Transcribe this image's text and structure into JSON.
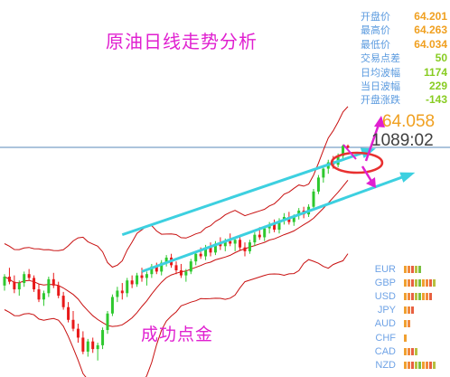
{
  "title": "原油日线走势分析",
  "bottom_label": "成功点金",
  "stats": [
    {
      "name": "开盘价",
      "value": "64.201",
      "color": "#f0a020"
    },
    {
      "name": "最高价",
      "value": "64.263",
      "color": "#f0a020"
    },
    {
      "name": "最低价",
      "value": "64.034",
      "color": "#f0a020"
    },
    {
      "name": "交易点差",
      "value": "50",
      "color": "#88cc22"
    },
    {
      "name": "日均波幅",
      "value": "1174",
      "color": "#88cc22"
    },
    {
      "name": "当日波幅",
      "value": "229",
      "color": "#88cc22"
    },
    {
      "name": "开盘涨跌",
      "value": "-143",
      "color": "#88cc22"
    }
  ],
  "price_label": "64.058",
  "time_label": "1089:02",
  "currencies": [
    {
      "name": "EUR",
      "strength": 5
    },
    {
      "name": "GBP",
      "strength": 9
    },
    {
      "name": "USD",
      "strength": 8
    },
    {
      "name": "JPY",
      "strength": 3
    },
    {
      "name": "AUD",
      "strength": 2
    },
    {
      "name": "CHF",
      "strength": 1
    },
    {
      "name": "CAD",
      "strength": 4
    },
    {
      "name": "NZD",
      "strength": 9
    }
  ],
  "colors": {
    "up_candle": "#2ec82e",
    "down_candle": "#e81818",
    "bollinger": "#c81010",
    "channel": "#3dd0e0",
    "annotation": "#e020d0",
    "ellipse": "#e83030",
    "last_price_line": "#2060a0"
  },
  "chart_data": {
    "type": "candlestick",
    "title": "原油日线走势分析",
    "last_price": 64.058,
    "ohlc_open_high_low": [
      64.201,
      64.263,
      64.034
    ],
    "candles": [
      [
        53.2,
        54.1,
        52.8,
        53.9
      ],
      [
        53.9,
        54.6,
        53.3,
        53.5
      ],
      [
        53.5,
        54.0,
        52.6,
        52.9
      ],
      [
        52.9,
        53.6,
        52.4,
        53.4
      ],
      [
        53.4,
        54.3,
        53.1,
        54.1
      ],
      [
        54.1,
        54.5,
        53.6,
        53.8
      ],
      [
        53.8,
        54.0,
        52.7,
        52.9
      ],
      [
        52.9,
        53.3,
        51.9,
        52.1
      ],
      [
        52.1,
        52.8,
        51.6,
        52.6
      ],
      [
        52.6,
        53.9,
        52.3,
        53.7
      ],
      [
        53.7,
        54.2,
        53.0,
        53.2
      ],
      [
        53.2,
        53.5,
        52.2,
        52.4
      ],
      [
        52.4,
        52.7,
        51.3,
        51.5
      ],
      [
        51.5,
        51.9,
        50.3,
        50.5
      ],
      [
        50.5,
        51.2,
        49.6,
        49.8
      ],
      [
        49.8,
        50.2,
        48.7,
        49.1
      ],
      [
        49.1,
        49.6,
        47.8,
        48.0
      ],
      [
        48.0,
        49.0,
        47.6,
        48.8
      ],
      [
        48.8,
        49.1,
        47.9,
        48.2
      ],
      [
        48.2,
        48.7,
        47.3,
        48.5
      ],
      [
        48.5,
        49.9,
        48.2,
        49.7
      ],
      [
        49.7,
        51.2,
        49.4,
        51.0
      ],
      [
        51.0,
        52.5,
        50.8,
        52.3
      ],
      [
        52.3,
        53.1,
        51.9,
        52.8
      ],
      [
        52.8,
        53.4,
        52.1,
        52.6
      ],
      [
        52.6,
        53.8,
        52.3,
        53.6
      ],
      [
        53.6,
        54.0,
        53.0,
        53.3
      ],
      [
        53.3,
        54.2,
        53.1,
        54.0
      ],
      [
        54.0,
        54.6,
        53.5,
        53.8
      ],
      [
        53.8,
        54.3,
        53.2,
        54.1
      ],
      [
        54.1,
        54.9,
        53.8,
        54.7
      ],
      [
        54.7,
        55.0,
        54.1,
        54.3
      ],
      [
        54.3,
        55.2,
        54.0,
        55.0
      ],
      [
        55.0,
        55.6,
        54.7,
        55.4
      ],
      [
        55.4,
        55.7,
        54.6,
        54.8
      ],
      [
        54.8,
        55.1,
        54.1,
        54.4
      ],
      [
        54.4,
        54.9,
        53.8,
        54.0
      ],
      [
        54.0,
        54.5,
        53.5,
        54.3
      ],
      [
        54.3,
        55.3,
        54.1,
        55.1
      ],
      [
        55.1,
        55.9,
        54.8,
        55.7
      ],
      [
        55.7,
        56.2,
        55.3,
        55.5
      ],
      [
        55.5,
        56.4,
        55.2,
        56.2
      ],
      [
        56.2,
        56.6,
        55.5,
        55.8
      ],
      [
        55.8,
        56.7,
        55.6,
        56.5
      ],
      [
        56.5,
        57.0,
        56.0,
        56.3
      ],
      [
        56.3,
        56.9,
        55.9,
        56.7
      ],
      [
        56.7,
        57.3,
        56.3,
        56.5
      ],
      [
        56.5,
        57.0,
        55.9,
        56.8
      ],
      [
        56.8,
        57.2,
        56.0,
        56.2
      ],
      [
        56.2,
        56.6,
        55.5,
        55.9
      ],
      [
        55.9,
        56.8,
        55.7,
        56.6
      ],
      [
        56.6,
        57.4,
        56.3,
        57.2
      ],
      [
        57.2,
        57.8,
        56.8,
        57.0
      ],
      [
        57.0,
        57.9,
        56.7,
        57.7
      ],
      [
        57.7,
        58.2,
        57.3,
        58.0
      ],
      [
        58.0,
        58.4,
        57.4,
        57.6
      ],
      [
        57.6,
        58.5,
        57.3,
        58.3
      ],
      [
        58.3,
        58.9,
        58.0,
        58.6
      ],
      [
        58.6,
        59.0,
        58.0,
        58.2
      ],
      [
        58.2,
        58.8,
        57.9,
        58.7
      ],
      [
        58.7,
        59.3,
        58.4,
        59.1
      ],
      [
        59.1,
        59.4,
        58.5,
        58.8
      ],
      [
        58.8,
        59.6,
        58.6,
        59.4
      ],
      [
        59.4,
        60.8,
        59.2,
        60.6
      ],
      [
        60.6,
        61.9,
        60.4,
        61.7
      ],
      [
        61.7,
        62.6,
        61.3,
        62.4
      ],
      [
        62.4,
        63.1,
        62.0,
        62.9
      ],
      [
        62.9,
        63.4,
        62.4,
        62.7
      ],
      [
        62.7,
        63.6,
        62.5,
        63.4
      ],
      [
        63.4,
        64.3,
        63.2,
        64.2
      ],
      [
        64.2,
        64.3,
        64.0,
        64.06
      ]
    ],
    "channel_lines": [
      {
        "name": "upper-channel",
        "from": [
          24,
          57.2
        ],
        "to": [
          75,
          63.9
        ]
      },
      {
        "name": "lower-channel",
        "from": [
          28,
          54.3
        ],
        "to": [
          83,
          62.0
        ]
      }
    ]
  }
}
